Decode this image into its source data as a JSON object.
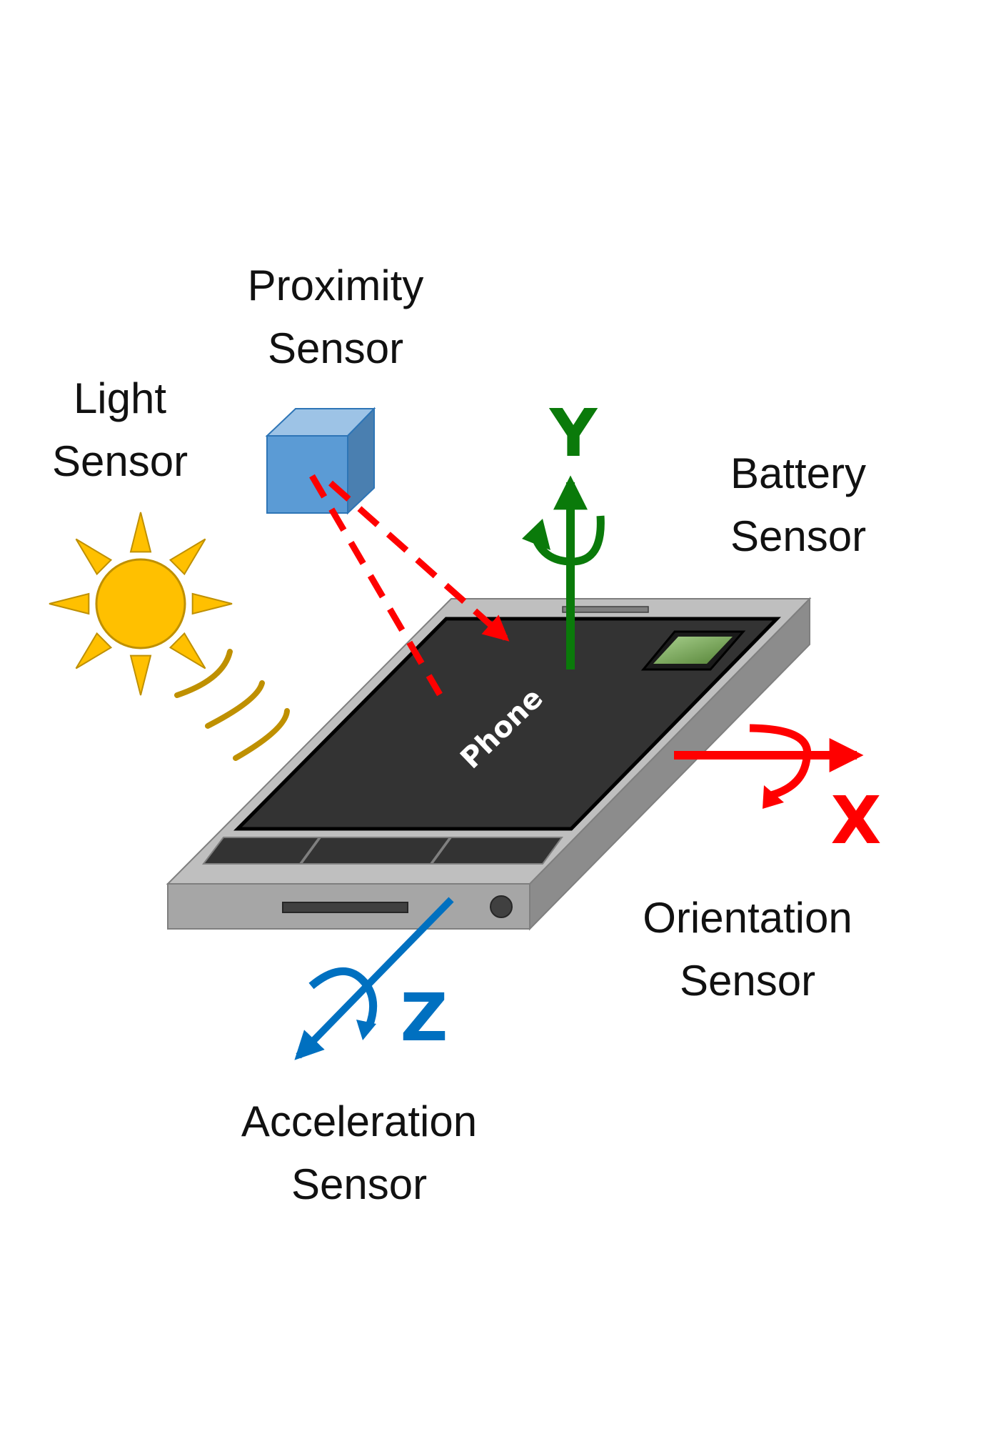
{
  "labels": {
    "proximity": [
      "Proximity",
      "Sensor"
    ],
    "light": [
      "Light",
      "Sensor"
    ],
    "battery": [
      "Battery",
      "Sensor"
    ],
    "orientation": [
      "Orientation",
      "Sensor"
    ],
    "acceleration": [
      "Acceleration",
      "Sensor"
    ],
    "phone": "Phone"
  },
  "axes": {
    "x": {
      "label": "X",
      "color": "#ff0000"
    },
    "y": {
      "label": "Y",
      "color": "#0a7a0a"
    },
    "z": {
      "label": "Z",
      "color": "#0070c0"
    }
  },
  "colors": {
    "sun": "#ffc000",
    "sun_waves": "#bf9000",
    "proximity_cube": "#5b9bd5",
    "proximity_beam": "#ff0000",
    "phone_body": "#bfbfbf",
    "phone_screen": "#333333",
    "battery_chip": "#70ad47"
  },
  "icons": [
    "sun-icon",
    "proximity-cube-icon",
    "phone-icon",
    "battery-chip-icon"
  ]
}
